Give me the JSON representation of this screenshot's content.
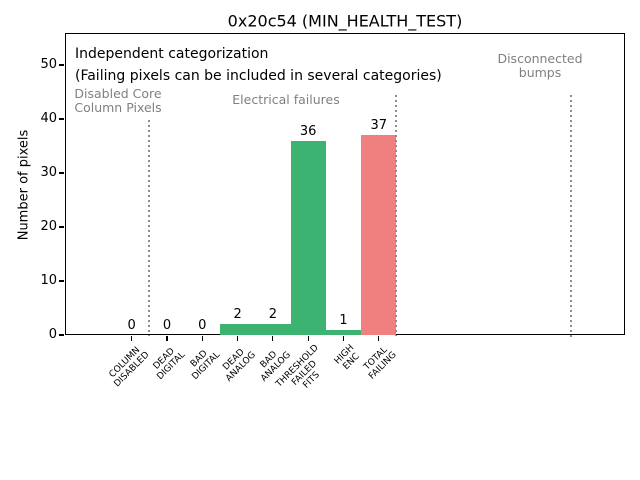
{
  "colors": {
    "green_bar": "#3cb371",
    "red_bar": "#f08080",
    "gray_text": "#808080",
    "separator_gray": "#8c8c8c",
    "axis_black": "#000000"
  },
  "annotations": {
    "independent_line1": "Independent categorization",
    "independent_line2": "(Failing pixels can be included in several categories)",
    "region_disabled": "Disabled Core\nColumn Pixels",
    "region_electrical": "Electrical failures",
    "region_disconnected": "Disconnected\nbumps"
  },
  "chart_data": {
    "type": "bar",
    "title": "0x20c54 (MIN_HEALTH_TEST)",
    "xlabel": "",
    "ylabel": "Number of pixels",
    "categories": [
      "COLUMN\nDISABLED",
      "DEAD\nDIGITAL",
      "BAD\nDIGITAL",
      "DEAD\nANALOG",
      "BAD\nANALOG",
      "THRESHOLD\nFAILED\nFITS",
      "HIGH\nENC",
      "TOTAL\nFAILING"
    ],
    "values": [
      0,
      0,
      0,
      2,
      2,
      36,
      1,
      37
    ],
    "bar_value_labels": [
      "0",
      "0",
      "0",
      "2",
      "2",
      "36",
      "1",
      "37"
    ],
    "bar_colors": [
      "#3cb371",
      "#3cb371",
      "#3cb371",
      "#3cb371",
      "#3cb371",
      "#3cb371",
      "#3cb371",
      "#f08080"
    ],
    "yticks": [
      0,
      10,
      20,
      30,
      40,
      50
    ],
    "ylim": [
      0,
      56
    ],
    "grid": false,
    "legend": "none",
    "region_separators": [
      "between COLUMN DISABLED and DEAD DIGITAL",
      "after TOTAL FAILING",
      "right of plot under Disconnected bumps"
    ]
  }
}
